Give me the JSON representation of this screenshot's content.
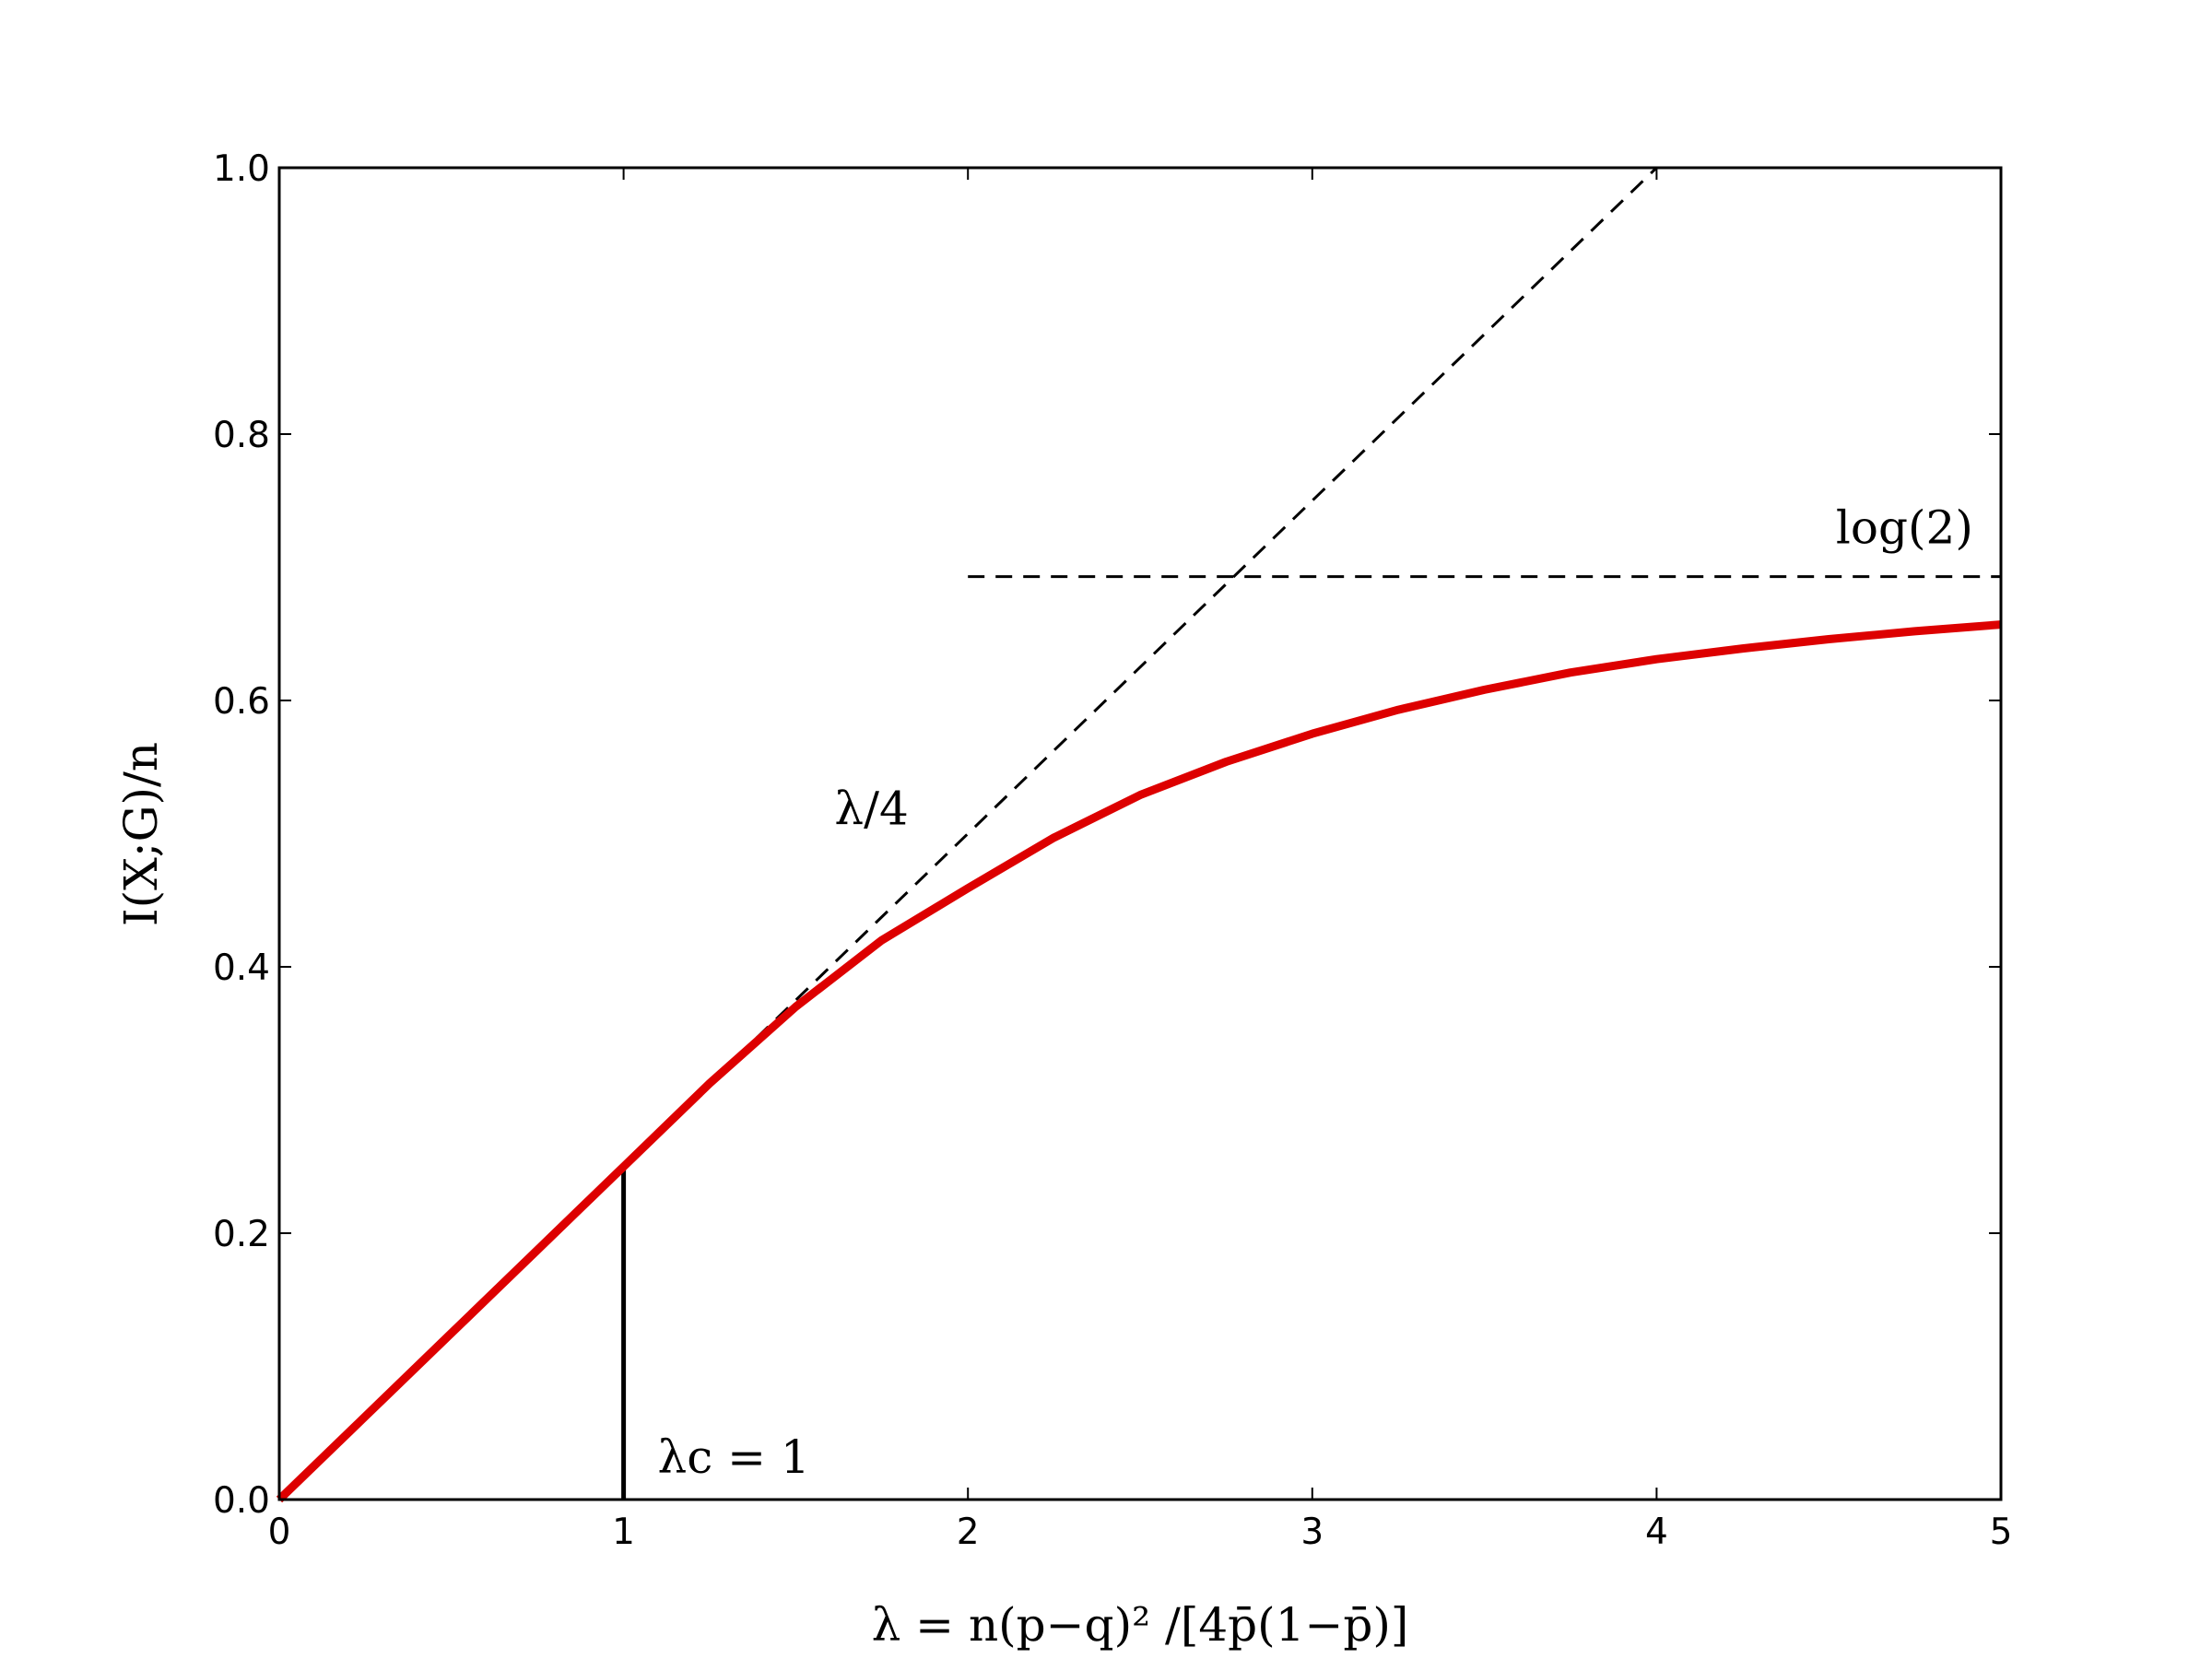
{
  "chart_data": {
    "type": "line",
    "xlabel": "λ = n(p−q)² /[4p̄(1−p̄)]",
    "ylabel": "I(X;G)/n",
    "xlim": [
      0,
      5
    ],
    "ylim": [
      0,
      1.0
    ],
    "x_ticks": [
      0,
      1,
      2,
      3,
      4,
      5
    ],
    "x_tick_labels": [
      "0",
      "1",
      "2",
      "3",
      "4",
      "5"
    ],
    "y_ticks": [
      0.0,
      0.2,
      0.4,
      0.6,
      0.8,
      1.0
    ],
    "y_tick_labels": [
      "0.0",
      "0.2",
      "0.4",
      "0.6",
      "0.8",
      "1.0"
    ],
    "grid": false,
    "series": [
      {
        "color": "#dd0000",
        "style": "solid",
        "x": [
          0,
          0.25,
          0.5,
          0.75,
          1.0,
          1.25,
          1.5,
          1.75,
          2.0,
          2.25,
          2.5,
          2.75,
          3.0,
          3.25,
          3.5,
          3.75,
          4.0,
          4.25,
          4.5,
          4.75,
          5.0
        ],
        "y": [
          0,
          0.0625,
          0.125,
          0.1875,
          0.25,
          0.3125,
          0.37,
          0.42,
          0.459,
          0.497,
          0.529,
          0.554,
          0.575,
          0.593,
          0.608,
          0.621,
          0.631,
          0.639,
          0.646,
          0.652,
          0.657
        ]
      },
      {
        "color": "#000000",
        "style": "dashed",
        "x": [
          0,
          4.0
        ],
        "y": [
          0,
          1.0
        ]
      },
      {
        "color": "#000000",
        "style": "dashed",
        "x": [
          2.0,
          5.0
        ],
        "y": [
          0.693,
          0.693
        ]
      },
      {
        "color": "#000000",
        "style": "solid",
        "x": [
          1.0,
          1.0
        ],
        "y": [
          0,
          0.25
        ]
      }
    ],
    "annotations": [
      {
        "text": "log(2)",
        "x": 4.72,
        "y": 0.718
      },
      {
        "text": "λ/4",
        "x": 1.72,
        "y": 0.507
      },
      {
        "text": "λc = 1",
        "x": 1.32,
        "y": 0.02
      }
    ]
  }
}
